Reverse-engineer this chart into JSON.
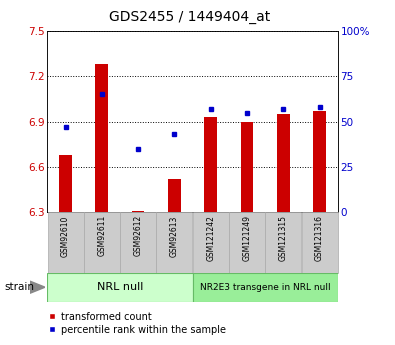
{
  "title": "GDS2455 / 1449404_at",
  "samples": [
    "GSM92610",
    "GSM92611",
    "GSM92612",
    "GSM92613",
    "GSM121242",
    "GSM121249",
    "GSM121315",
    "GSM121316"
  ],
  "transformed_count": [
    6.68,
    7.28,
    6.31,
    6.52,
    6.93,
    6.9,
    6.95,
    6.97
  ],
  "percentile_rank": [
    47,
    65,
    35,
    43,
    57,
    55,
    57,
    58
  ],
  "ylim_left": [
    6.3,
    7.5
  ],
  "ylim_right": [
    0,
    100
  ],
  "yticks_left": [
    6.3,
    6.6,
    6.9,
    7.2,
    7.5
  ],
  "yticks_right": [
    0,
    25,
    50,
    75,
    100
  ],
  "ytick_labels_left": [
    "6.3",
    "6.6",
    "6.9",
    "7.2",
    "7.5"
  ],
  "ytick_labels_right": [
    "0",
    "25",
    "50",
    "75",
    "100%"
  ],
  "bar_color": "#cc0000",
  "dot_color": "#0000cc",
  "bar_bottom": 6.3,
  "group1_label": "NRL null",
  "group1_color": "#ccffcc",
  "group1_border": "#66bb66",
  "group2_label": "NR2E3 transgene in NRL null",
  "group2_color": "#99ee99",
  "group2_border": "#66bb66",
  "legend_bar_label": "transformed count",
  "legend_dot_label": "percentile rank within the sample",
  "strain_label": "strain",
  "background_color": "#ffffff",
  "tick_bg_color": "#cccccc",
  "title_fontsize": 10,
  "label_fontsize": 7,
  "axis_color_left": "#cc0000",
  "axis_color_right": "#0000cc"
}
